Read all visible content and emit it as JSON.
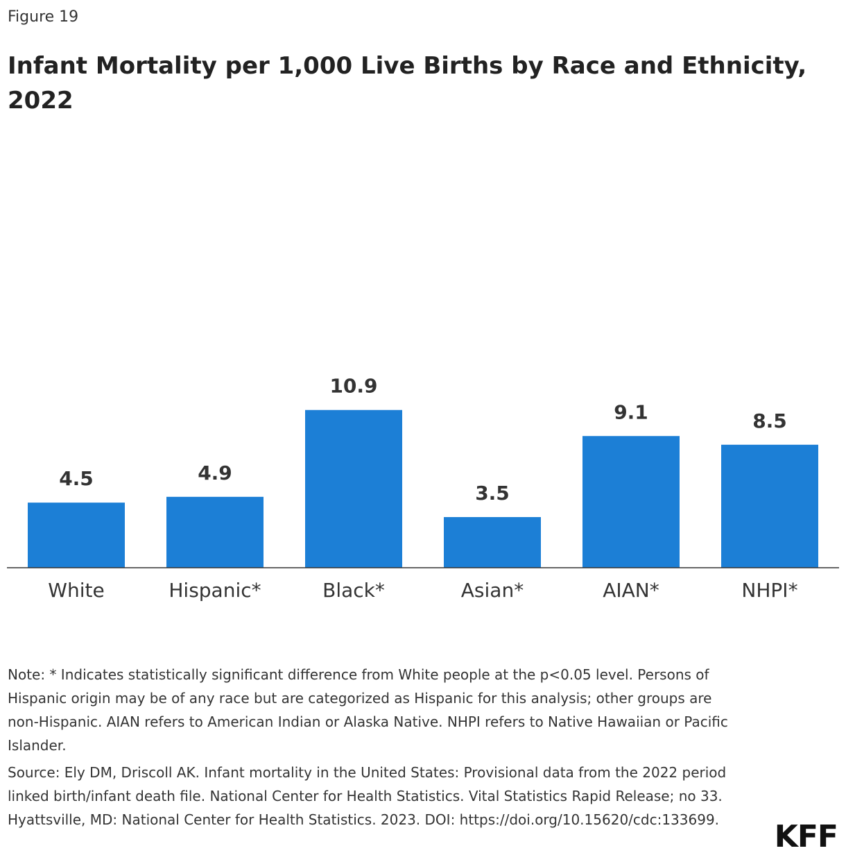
{
  "figure_label": "Figure 19",
  "chart_data": {
    "type": "bar",
    "title": "Infant Mortality per 1,000 Live Births by Race and Ethnicity, 2022",
    "categories": [
      "White",
      "Hispanic*",
      "Black*",
      "Asian*",
      "AIAN*",
      "NHPI*"
    ],
    "values": [
      4.5,
      4.9,
      10.9,
      3.5,
      9.1,
      8.5
    ],
    "color": "#1c7fd6"
  },
  "note": "Note: * Indicates statistically significant difference from White people at the p<0.05 level. Persons of Hispanic origin may be of any race but are categorized as Hispanic for this analysis; other groups are non-Hispanic. AIAN refers to American Indian or Alaska Native. NHPI refers to Native Hawaiian or Pacific Islander.",
  "source": "Source: Ely DM, Driscoll AK. Infant mortality in the United States: Provisional data from the 2022 period linked birth/infant death file. National Center for Health Statistics. Vital Statistics Rapid Release; no 33. Hyattsville, MD: National Center for Health Statistics. 2023. DOI: https://doi.org/10.15620/cdc:133699.",
  "logo": "KFF"
}
